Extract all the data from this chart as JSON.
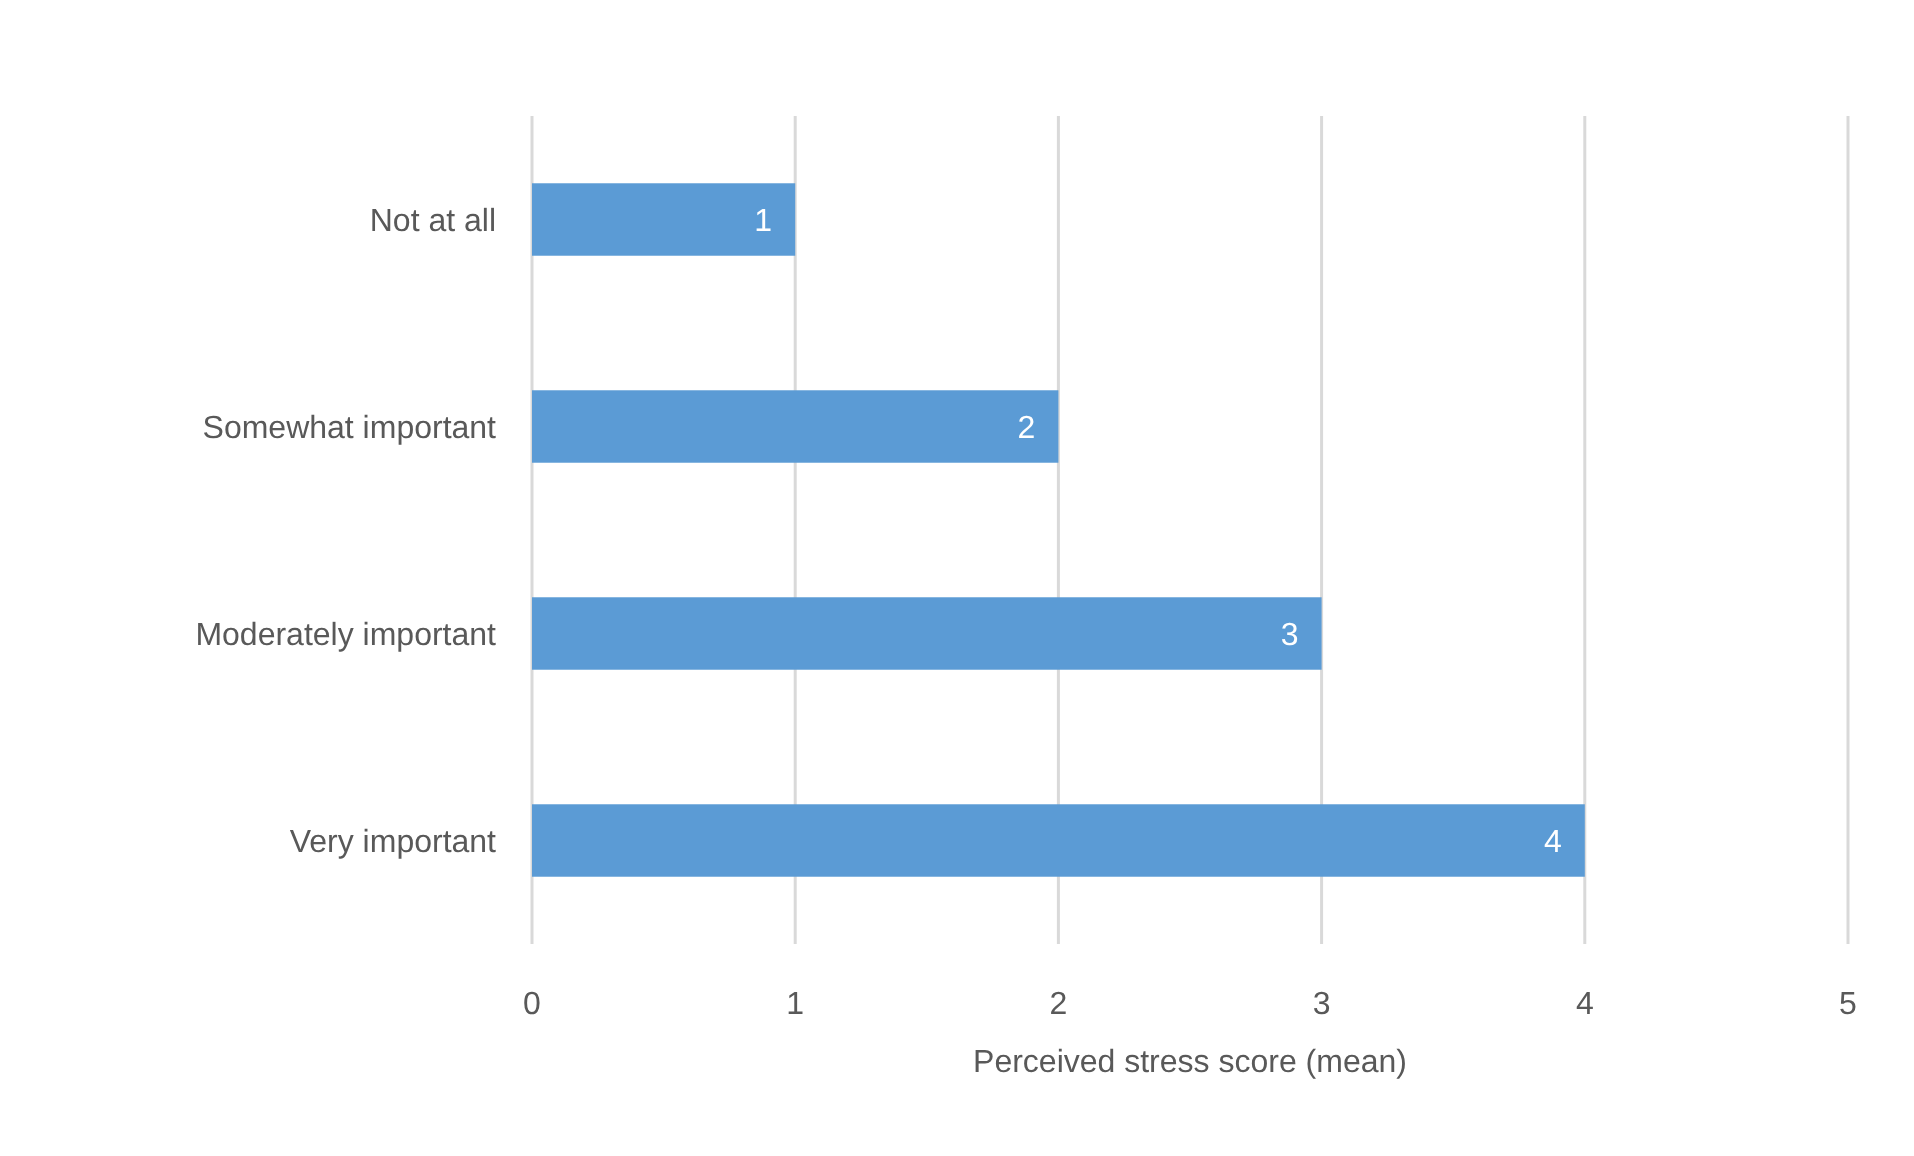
{
  "chart_data": {
    "type": "bar",
    "orientation": "horizontal",
    "xlabel": "Perceived stress score (mean)",
    "categories": [
      "Not at all",
      "Somewhat important",
      "Moderately important",
      "Very important"
    ],
    "values": [
      1,
      2,
      3,
      4
    ],
    "color": "#5b9bd5",
    "data_labels": true,
    "xlim": [
      0,
      5
    ],
    "xticks": [
      0,
      1,
      2,
      3,
      4,
      5
    ],
    "grid": "x"
  }
}
